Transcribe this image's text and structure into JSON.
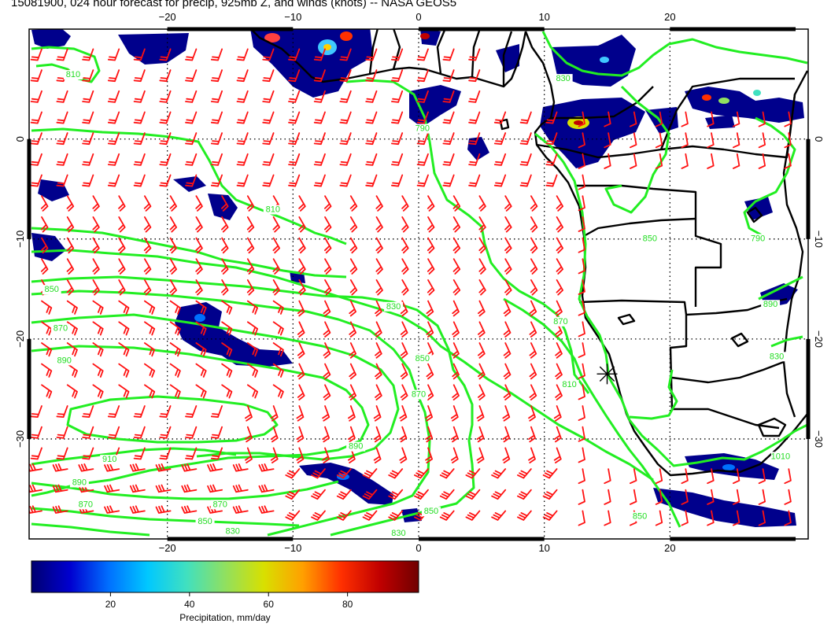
{
  "title": "15081900, 024 hour forecast for precip, 925mb Z, and winds (knots) -- NASA GEOS5",
  "map": {
    "lon_range": [
      -31,
      31
    ],
    "lat_range": [
      -40,
      11
    ],
    "lon_ticks": [
      {
        "value": -20,
        "label": "−20"
      },
      {
        "value": -10,
        "label": "−10"
      },
      {
        "value": 0,
        "label": "0"
      },
      {
        "value": 10,
        "label": "10"
      },
      {
        "value": 20,
        "label": "20"
      }
    ],
    "lat_ticks": [
      {
        "value": 0,
        "label": "0"
      },
      {
        "value": -10,
        "label": "−10"
      },
      {
        "value": -20,
        "label": "−20"
      },
      {
        "value": -30,
        "label": "−30"
      }
    ],
    "contour_color": "#22ee22",
    "wind_color": "#ff1111",
    "land_color": "#000000",
    "marker": {
      "lon": 15,
      "lat": -23.5,
      "icon": "asterisk-marker-icon"
    }
  },
  "contour_labels": [
    {
      "text": "810",
      "lon": -27.5,
      "lat": 6.2
    },
    {
      "text": "790",
      "lon": 0.3,
      "lat": 0.8
    },
    {
      "text": "810",
      "lon": -11.6,
      "lat": -7.3
    },
    {
      "text": "850",
      "lon": -29.2,
      "lat": -15.3
    },
    {
      "text": "870",
      "lon": -28.5,
      "lat": -19.2
    },
    {
      "text": "890",
      "lon": -28.2,
      "lat": -22.4
    },
    {
      "text": "830",
      "lon": -2.0,
      "lat": -17.0
    },
    {
      "text": "850",
      "lon": 0.3,
      "lat": -22.2
    },
    {
      "text": "870",
      "lon": 0.0,
      "lat": -25.8
    },
    {
      "text": "810",
      "lon": 12.0,
      "lat": -24.8
    },
    {
      "text": "890",
      "lon": -5.0,
      "lat": -31.0
    },
    {
      "text": "910",
      "lon": -24.6,
      "lat": -32.3
    },
    {
      "text": "890",
      "lon": -27.0,
      "lat": -34.6
    },
    {
      "text": "870",
      "lon": -26.5,
      "lat": -36.8
    },
    {
      "text": "870",
      "lon": -15.8,
      "lat": -36.8
    },
    {
      "text": "850",
      "lon": 1.0,
      "lat": -37.5
    },
    {
      "text": "850",
      "lon": -17.0,
      "lat": -38.5
    },
    {
      "text": "830",
      "lon": -14.8,
      "lat": -39.5
    },
    {
      "text": "830",
      "lon": -1.6,
      "lat": -39.7
    },
    {
      "text": "850",
      "lon": 17.6,
      "lat": -38.0
    },
    {
      "text": "870",
      "lon": 11.3,
      "lat": -18.5
    },
    {
      "text": "830",
      "lon": 11.5,
      "lat": 5.8
    },
    {
      "text": "850",
      "lon": 18.4,
      "lat": -10.2
    },
    {
      "text": "790",
      "lon": 27.0,
      "lat": -10.2
    },
    {
      "text": "890",
      "lon": 28.0,
      "lat": -16.8
    },
    {
      "text": "830",
      "lon": 28.5,
      "lat": -22.0
    },
    {
      "text": "1010",
      "lon": 28.8,
      "lat": -32.0
    }
  ],
  "colorbar": {
    "min": 0,
    "max": 98,
    "ticks": [
      {
        "value": 20,
        "label": "20"
      },
      {
        "value": 40,
        "label": "40"
      },
      {
        "value": 60,
        "label": "60"
      },
      {
        "value": 80,
        "label": "80"
      }
    ],
    "label": "Precipitation, mm/day",
    "colors": [
      "#000070",
      "#0000d0",
      "#0070ff",
      "#00c8ff",
      "#40e0c0",
      "#90e060",
      "#d8e000",
      "#ffa000",
      "#ff3000",
      "#c00000",
      "#700000"
    ]
  }
}
